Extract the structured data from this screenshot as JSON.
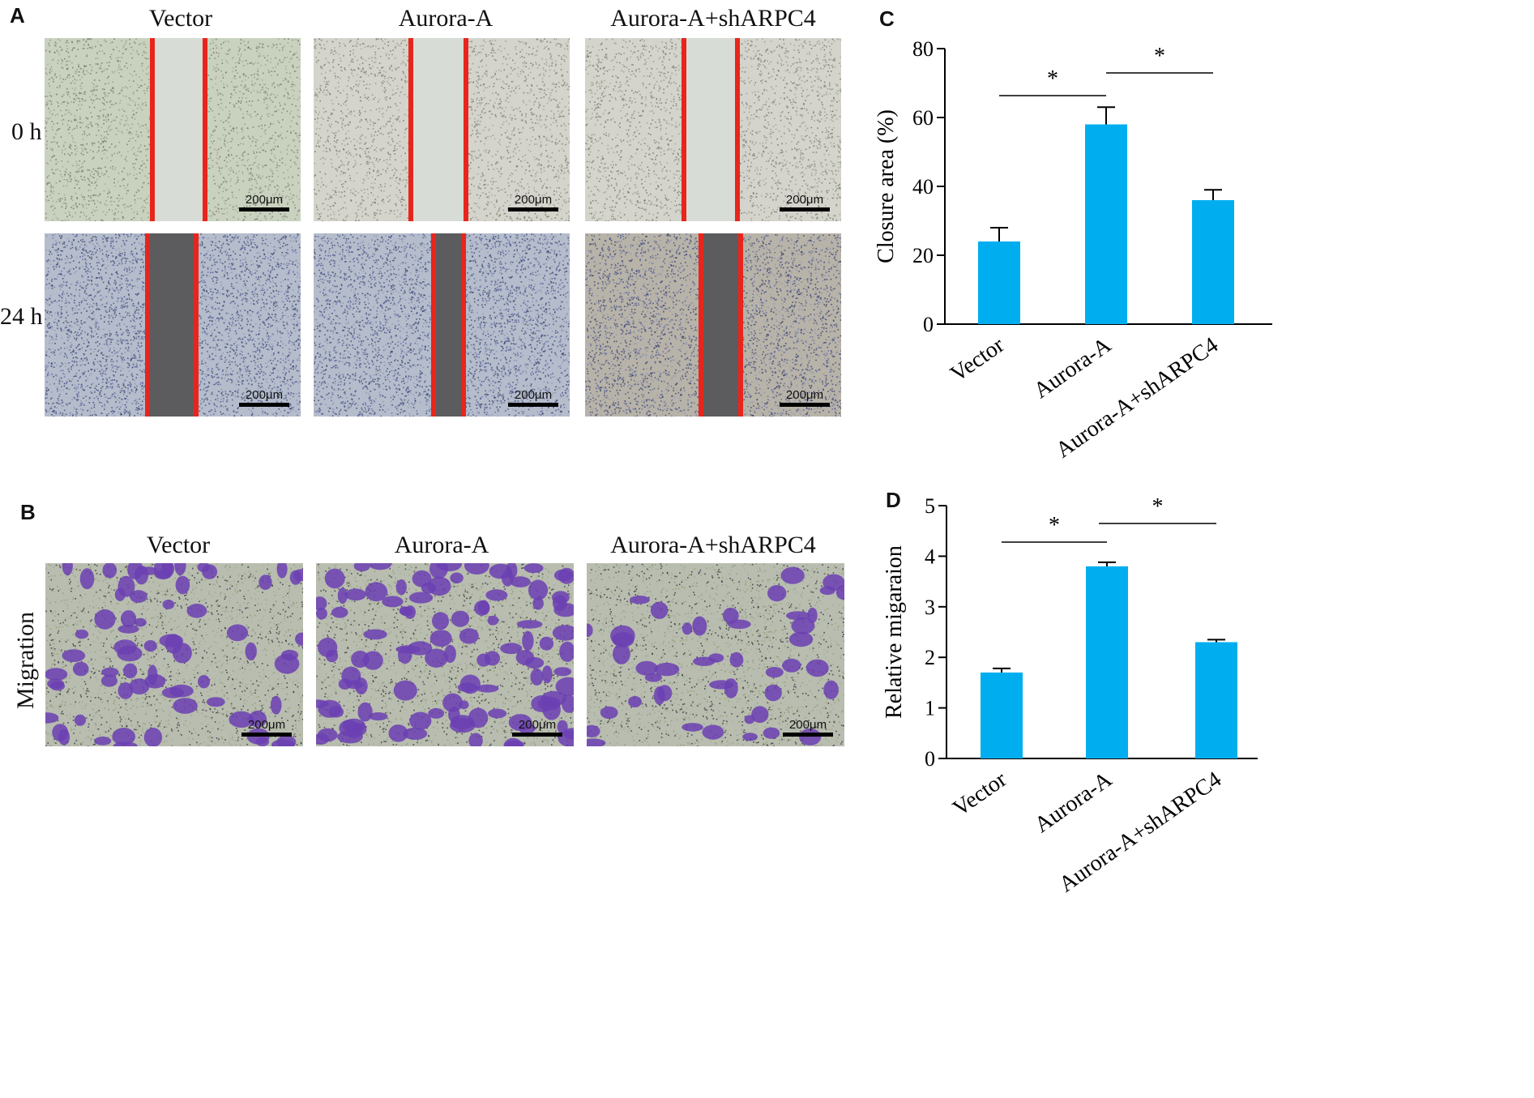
{
  "panels": {
    "A": {
      "letter": "A",
      "columns": [
        "Vector",
        "Aurora-A",
        "Aurora-A+shARPC4"
      ],
      "rows": [
        "0 h",
        "24 h"
      ],
      "scale_bar": "200μm"
    },
    "B": {
      "letter": "B",
      "columns": [
        "Vector",
        "Aurora-A",
        "Aurora-A+shARPC4"
      ],
      "row": "Migration",
      "scale_bar": "200μm"
    },
    "C": {
      "letter": "C"
    },
    "D": {
      "letter": "D"
    }
  },
  "colors": {
    "bar": "#00aeef",
    "wound_line": "#e8251c",
    "stain": "#6b3fb3"
  },
  "chart_data": [
    {
      "type": "bar",
      "panel": "C",
      "categories": [
        "Vector",
        "Aurora-A",
        "Aurora-A+shARPC4"
      ],
      "values": [
        24,
        58,
        36
      ],
      "errors": [
        4,
        5,
        3
      ],
      "ylabel": "Closure area (%)",
      "ylim": [
        0,
        80
      ],
      "yticks": [
        0,
        20,
        40,
        60,
        80
      ],
      "significance": [
        {
          "from": 0,
          "to": 1,
          "label": "*"
        },
        {
          "from": 1,
          "to": 2,
          "label": "*"
        }
      ]
    },
    {
      "type": "bar",
      "panel": "D",
      "categories": [
        "Vector",
        "Aurora-A",
        "Aurora-A+shARPC4"
      ],
      "values": [
        1.7,
        3.8,
        2.3
      ],
      "errors": [
        0.08,
        0.08,
        0.05
      ],
      "ylabel": "Relative migaraion",
      "ylim": [
        0,
        5
      ],
      "yticks": [
        0,
        1,
        2,
        3,
        4,
        5
      ],
      "significance": [
        {
          "from": 0,
          "to": 1,
          "label": "*"
        },
        {
          "from": 1,
          "to": 2,
          "label": "*"
        }
      ]
    }
  ]
}
